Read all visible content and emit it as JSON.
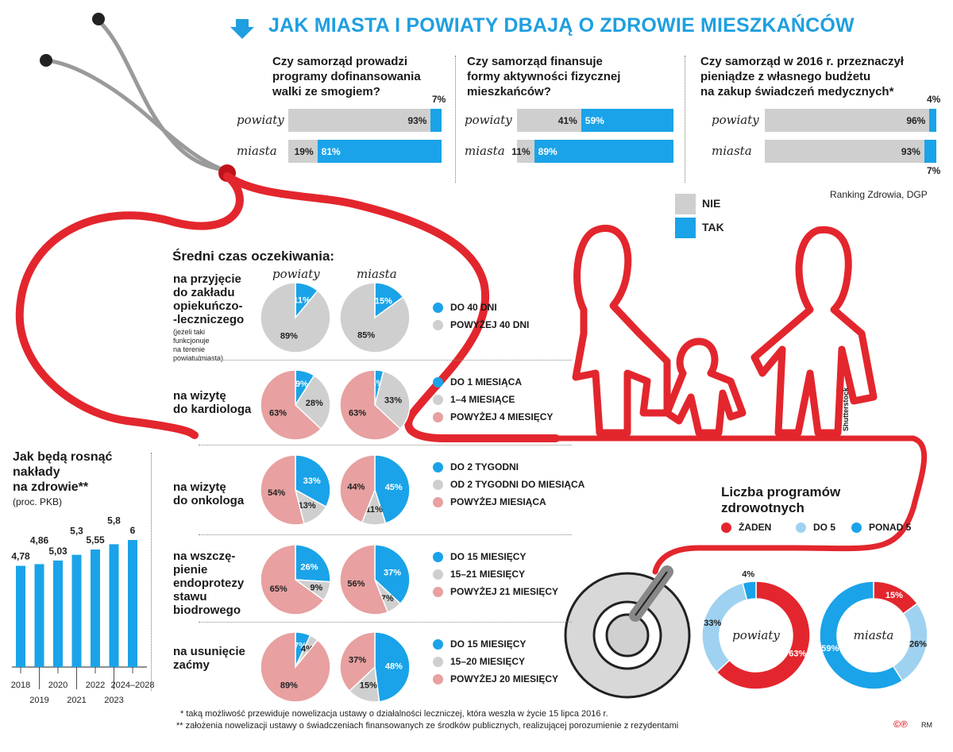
{
  "header": {
    "title": "JAK MIASTA I POWIATY DBAJĄ O ZDROWIE MIESZKAŃCÓW",
    "source": "Ranking Zdrowia, DGP"
  },
  "colors": {
    "blue": "#1aa3e8",
    "grey": "#cfcfcf",
    "red": "#e3262d",
    "pink": "#e8a0a0",
    "lightblue": "#9fd2f0"
  },
  "survey": {
    "legend": {
      "nie": "NIE",
      "tak": "TAK"
    },
    "questions": [
      {
        "line1": "Czy samorząd prowadzi",
        "line2": "programy dofinansowania",
        "line3": "walki ze smogiem?",
        "rows": [
          {
            "label": "powiaty",
            "nie": 93,
            "tak": 7,
            "nie_text": "93%",
            "tak_text": "7%"
          },
          {
            "label": "miasta",
            "nie": 19,
            "tak": 81,
            "nie_text": "19%",
            "tak_text": "81%"
          }
        ]
      },
      {
        "line1": "Czy samorząd finansuje",
        "line2": "formy aktywności fizycznej",
        "line3": "mieszkańców?",
        "rows": [
          {
            "label": "powiaty",
            "nie": 41,
            "tak": 59,
            "nie_text": "41%",
            "tak_text": "59%"
          },
          {
            "label": "miasta",
            "nie": 11,
            "tak": 89,
            "nie_text": "11%",
            "tak_text": "89%"
          }
        ]
      },
      {
        "line1": "Czy samorząd w 2016 r. przeznaczył",
        "line2": "pieniądze z własnego budżetu",
        "line3": "na zakup świadczeń medycznych*",
        "rows": [
          {
            "label": "powiaty",
            "nie": 96,
            "tak": 4,
            "nie_text": "96%",
            "tak_text": "4%"
          },
          {
            "label": "miasta",
            "nie": 93,
            "tak": 7,
            "nie_text": "93%",
            "tak_text": "7%"
          }
        ]
      }
    ]
  },
  "waiting": {
    "heading": "Średni czas oczekiwania:",
    "col_powiaty": "powiaty",
    "col_miasta": "miasta",
    "categories": [
      {
        "label_lines": [
          "na przyjęcie",
          "do zakładu",
          "opiekuńczo-",
          "-leczniczego"
        ],
        "note_lines": [
          "(jeżeli taki",
          "funkcjonuje",
          "na terenie",
          "powiatu/miasta)"
        ],
        "legend": [
          "DO 40 DNI",
          "POWYŻEJ 40 DNI"
        ],
        "powiaty": [
          11,
          89
        ],
        "miasta": [
          15,
          85
        ],
        "powiaty_text": [
          "11%",
          "89%"
        ],
        "miasta_text": [
          "15%",
          "85%"
        ]
      },
      {
        "label_lines": [
          "na wizytę",
          "do kardiologa"
        ],
        "note_lines": [],
        "legend": [
          "DO 1 MIESIĄCA",
          "1–4 MIESIĄCE",
          "POWYŻEJ 4 MIESIĘCY"
        ],
        "powiaty": [
          9,
          28,
          63
        ],
        "miasta": [
          4,
          33,
          63
        ],
        "powiaty_text": [
          "9%",
          "28%",
          "63%"
        ],
        "miasta_text": [
          "4%",
          "33%",
          "63%"
        ]
      },
      {
        "label_lines": [
          "na wizytę",
          "do onkologa"
        ],
        "note_lines": [],
        "legend": [
          "DO 2 TYGODNI",
          "OD 2 TYGODNI DO MIESIĄCA",
          "POWYŻEJ MIESIĄCA"
        ],
        "powiaty": [
          33,
          13,
          54
        ],
        "miasta": [
          45,
          11,
          44
        ],
        "powiaty_text": [
          "33%",
          "13%",
          "54%"
        ],
        "miasta_text": [
          "45%",
          "11%",
          "44%"
        ]
      },
      {
        "label_lines": [
          "na wszczę-",
          "pienie",
          "endoprotezy",
          "stawu",
          "biodrowego"
        ],
        "note_lines": [],
        "legend": [
          "DO 15 MIESIĘCY",
          "15–21 MIESIĘCY",
          "POWYŻEJ 21 MIESIĘCY"
        ],
        "powiaty": [
          26,
          9,
          65
        ],
        "miasta": [
          37,
          7,
          56
        ],
        "powiaty_text": [
          "26%",
          "9%",
          "65%"
        ],
        "miasta_text": [
          "37%",
          "7%",
          "56%"
        ]
      },
      {
        "label_lines": [
          "na usunięcie",
          "zaćmy"
        ],
        "note_lines": [],
        "legend": [
          "DO 15 MIESIĘCY",
          "15–20 MIESIĘCY",
          "POWYŻEJ 20 MIESIĘCY"
        ],
        "powiaty": [
          7,
          4,
          89
        ],
        "miasta": [
          48,
          15,
          37
        ],
        "powiaty_text": [
          "7%",
          "4%",
          "89%"
        ],
        "miasta_text": [
          "48%",
          "15%",
          "37%"
        ]
      }
    ]
  },
  "spending": {
    "title_lines": [
      "Jak będą rosnąć",
      "nakłady",
      "na zdrowie**"
    ],
    "subtitle": "(proc. PKB)",
    "chart_data": {
      "type": "bar",
      "categories": [
        "2018",
        "2019",
        "2020",
        "2021",
        "2022",
        "2023",
        "2024–2028"
      ],
      "values": [
        4.78,
        4.86,
        5.03,
        5.3,
        5.55,
        5.8,
        6
      ],
      "value_labels": [
        "4,78",
        "4,86",
        "5,03",
        "5,3",
        "5,55",
        "5,8",
        "6"
      ],
      "ylim": [
        0,
        6
      ]
    }
  },
  "programs": {
    "title_lines": [
      "Liczba programów",
      "zdrowotnych"
    ],
    "legend": [
      "ŻADEN",
      "DO 5",
      "PONAD 5"
    ],
    "chart_data": {
      "type": "pie",
      "donuts": [
        {
          "name": "powiaty",
          "values": [
            63,
            33,
            4
          ],
          "texts": [
            "63%",
            "33%",
            "4%"
          ]
        },
        {
          "name": "miasta",
          "values": [
            15,
            26,
            59
          ],
          "texts": [
            "15%",
            "26%",
            "59%"
          ]
        }
      ]
    }
  },
  "footnotes": [
    "* taką możliwość przewiduje nowelizacja ustawy o działalności leczniczej, która weszła w życie 15 lipca 2016 r.",
    "** założenia nowelizacji ustawy o świadczeniach finansowanych ze środków publicznych, realizującej porozumienie z rezydentami"
  ],
  "credits": {
    "photo": "Shutterstock",
    "logo": "©℗",
    "author": "RM"
  }
}
